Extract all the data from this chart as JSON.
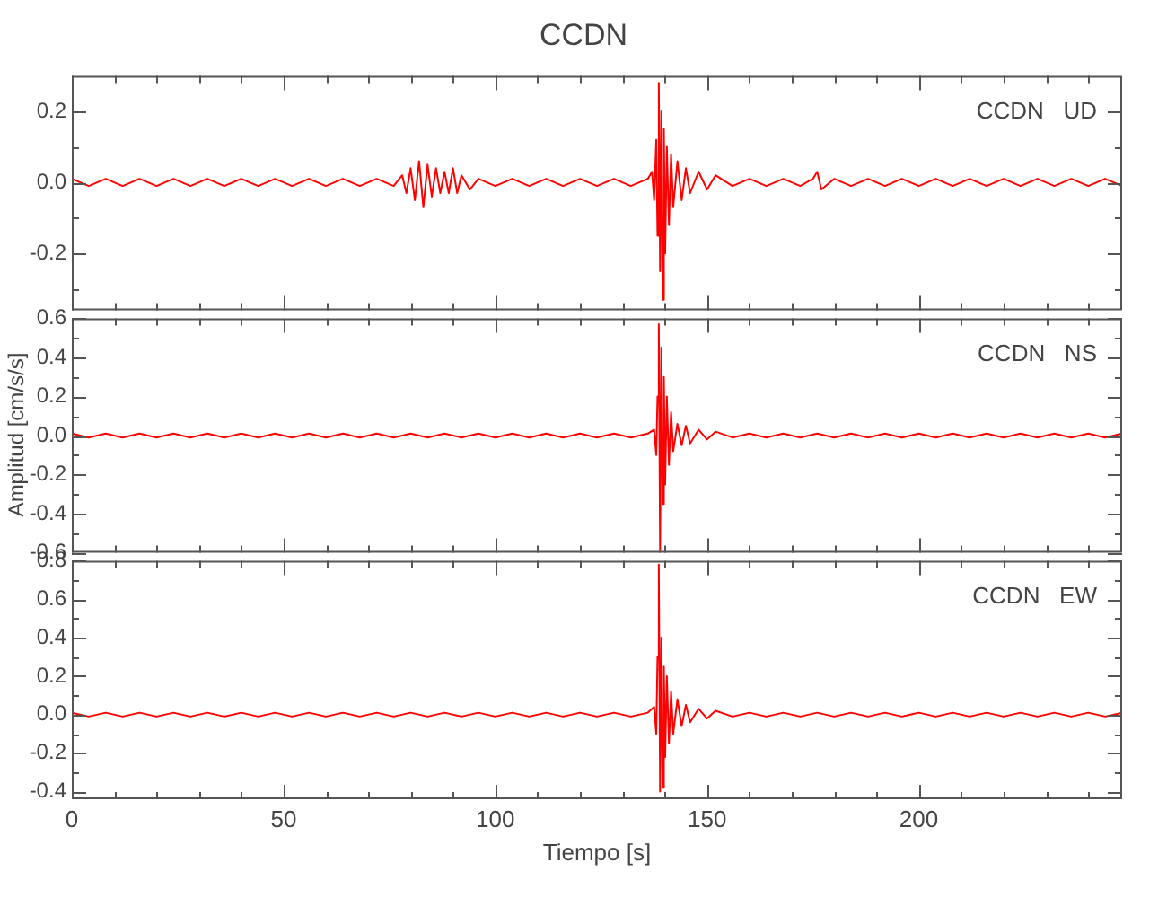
{
  "chart_data": [
    {
      "type": "line",
      "title": "CCDN",
      "annotations": [
        "CCDN   UD"
      ],
      "tick_labels": "y",
      "xlim": [
        0,
        248
      ],
      "xticks": [
        0,
        {
          "value": 10,
          "label": null
        },
        {
          "value": 20,
          "label": null
        },
        {
          "value": 30,
          "label": null
        },
        {
          "value": 40,
          "label": null
        },
        50,
        {
          "value": 60,
          "label": null
        },
        {
          "value": 70,
          "label": null
        },
        {
          "value": 80,
          "label": null
        },
        {
          "value": 90,
          "label": null
        },
        100,
        {
          "value": 110,
          "label": null
        },
        {
          "value": 120,
          "label": null
        },
        {
          "value": 130,
          "label": null
        },
        {
          "value": 140,
          "label": null
        },
        150,
        {
          "value": 160,
          "label": null
        },
        {
          "value": 170,
          "label": null
        },
        {
          "value": 180,
          "label": null
        },
        {
          "value": 190,
          "label": null
        },
        200,
        {
          "value": 210,
          "label": null
        },
        {
          "value": 220,
          "label": null
        },
        {
          "value": 230,
          "label": null
        },
        {
          "value": 240,
          "label": null
        }
      ],
      "ylim": [
        -0.36,
        0.3
      ],
      "yticks": [
        {
          "value": -0.3,
          "label": null
        },
        -0.2,
        {
          "value": -0.1,
          "label": null
        },
        {
          "value": 0,
          "label": "0.0"
        },
        {
          "value": 0.1,
          "label": null
        },
        0.2
      ],
      "series": [
        {
          "color": "#ff0000",
          "x": [
            0,
            4,
            8,
            12,
            16,
            20,
            24,
            28,
            32,
            36,
            40,
            44,
            48,
            52,
            56,
            60,
            64,
            68,
            72,
            76,
            78,
            79,
            80,
            81,
            82,
            83,
            84,
            85,
            86,
            87,
            88,
            89,
            90,
            91,
            92,
            94,
            96,
            100,
            104,
            108,
            112,
            116,
            120,
            124,
            128,
            132,
            136,
            137,
            137.5,
            138,
            138.3,
            138.6,
            138.9,
            139.2,
            139.5,
            139.8,
            140.1,
            140.5,
            141,
            141.5,
            142,
            143,
            144,
            145,
            146,
            148,
            150,
            152,
            156,
            160,
            164,
            168,
            172,
            175,
            176,
            177,
            180,
            184,
            188,
            192,
            196,
            200,
            204,
            208,
            212,
            216,
            220,
            224,
            228,
            232,
            236,
            240,
            244,
            248
          ],
          "values": [
            0.01,
            -0.01,
            0.01,
            -0.01,
            0.01,
            -0.01,
            0.01,
            -0.01,
            0.01,
            -0.01,
            0.01,
            -0.01,
            0.01,
            -0.01,
            0.01,
            -0.01,
            0.01,
            -0.01,
            0.01,
            -0.01,
            0.02,
            -0.03,
            0.04,
            -0.05,
            0.06,
            -0.07,
            0.05,
            -0.04,
            0.04,
            -0.03,
            0.03,
            -0.03,
            0.04,
            -0.03,
            0.02,
            -0.02,
            0.01,
            -0.01,
            0.01,
            -0.01,
            0.01,
            -0.01,
            0.01,
            -0.01,
            0.01,
            -0.01,
            0.01,
            0.03,
            -0.05,
            0.12,
            -0.15,
            0.28,
            -0.25,
            0.2,
            -0.33,
            0.15,
            -0.2,
            0.1,
            -0.12,
            0.08,
            -0.07,
            0.06,
            -0.05,
            0.04,
            -0.03,
            0.03,
            -0.02,
            0.02,
            -0.01,
            0.01,
            -0.01,
            0.01,
            -0.01,
            0.01,
            0.03,
            -0.02,
            0.01,
            -0.01,
            0.01,
            -0.01,
            0.01,
            -0.01,
            0.01,
            -0.01,
            0.01,
            -0.01,
            0.01,
            -0.01,
            0.01,
            -0.01,
            0.01,
            -0.01,
            0.01,
            -0.01
          ]
        }
      ]
    },
    {
      "type": "line",
      "ylabel": "Amplitud [cm/s/s]",
      "annotations": [
        "CCDN   NS"
      ],
      "tick_labels": "y",
      "xlim": [
        0,
        248
      ],
      "xticks": [
        0,
        {
          "value": 10,
          "label": null
        },
        {
          "value": 20,
          "label": null
        },
        {
          "value": 30,
          "label": null
        },
        {
          "value": 40,
          "label": null
        },
        50,
        {
          "value": 60,
          "label": null
        },
        {
          "value": 70,
          "label": null
        },
        {
          "value": 80,
          "label": null
        },
        {
          "value": 90,
          "label": null
        },
        100,
        {
          "value": 110,
          "label": null
        },
        {
          "value": 120,
          "label": null
        },
        {
          "value": 130,
          "label": null
        },
        {
          "value": 140,
          "label": null
        },
        150,
        {
          "value": 160,
          "label": null
        },
        {
          "value": 170,
          "label": null
        },
        {
          "value": 180,
          "label": null
        },
        {
          "value": 190,
          "label": null
        },
        200,
        {
          "value": 210,
          "label": null
        },
        {
          "value": 220,
          "label": null
        },
        {
          "value": 230,
          "label": null
        },
        {
          "value": 240,
          "label": null
        }
      ],
      "ylim": [
        -0.6,
        0.6
      ],
      "yticks": [
        -0.6,
        {
          "value": -0.5,
          "label": null
        },
        -0.4,
        {
          "value": -0.3,
          "label": null
        },
        -0.2,
        {
          "value": -0.1,
          "label": null
        },
        {
          "value": 0,
          "label": "0.0"
        },
        {
          "value": 0.1,
          "label": null
        },
        0.2,
        {
          "value": 0.3,
          "label": null
        },
        0.4,
        {
          "value": 0.5,
          "label": null
        },
        0.6
      ],
      "series": [
        {
          "color": "#ff0000",
          "x": [
            0,
            4,
            8,
            12,
            16,
            20,
            24,
            28,
            32,
            36,
            40,
            44,
            48,
            52,
            56,
            60,
            64,
            68,
            72,
            76,
            80,
            84,
            88,
            92,
            96,
            100,
            104,
            108,
            112,
            116,
            120,
            124,
            128,
            132,
            136,
            137.5,
            138,
            138.3,
            138.6,
            138.9,
            139.2,
            139.5,
            139.8,
            140.1,
            140.5,
            141,
            141.5,
            142,
            143,
            144,
            145,
            146,
            148,
            150,
            152,
            156,
            160,
            164,
            168,
            172,
            176,
            180,
            184,
            188,
            192,
            196,
            200,
            204,
            208,
            212,
            216,
            220,
            224,
            228,
            232,
            236,
            240,
            244,
            248
          ],
          "values": [
            0.01,
            -0.01,
            0.01,
            -0.01,
            0.01,
            -0.01,
            0.01,
            -0.01,
            0.01,
            -0.01,
            0.01,
            -0.01,
            0.01,
            -0.01,
            0.01,
            -0.01,
            0.01,
            -0.01,
            0.01,
            -0.01,
            0.01,
            -0.01,
            0.01,
            -0.01,
            0.01,
            -0.01,
            0.01,
            -0.01,
            0.01,
            -0.01,
            0.01,
            -0.01,
            0.01,
            -0.01,
            0.01,
            0.03,
            -0.1,
            0.2,
            0.57,
            -0.6,
            0.45,
            -0.35,
            0.3,
            -0.25,
            0.2,
            -0.15,
            0.12,
            -0.08,
            0.06,
            -0.05,
            0.05,
            -0.04,
            0.03,
            -0.02,
            0.02,
            -0.01,
            0.01,
            -0.01,
            0.01,
            -0.01,
            0.01,
            -0.01,
            0.01,
            -0.01,
            0.01,
            -0.01,
            0.01,
            -0.01,
            0.01,
            -0.01,
            0.01,
            -0.01,
            0.01,
            -0.01,
            0.01,
            -0.01,
            0.01,
            -0.01,
            0.01
          ]
        }
      ]
    },
    {
      "type": "line",
      "xlabel": "Tiempo [s]",
      "annotations": [
        "CCDN   EW"
      ],
      "xlim": [
        0,
        248
      ],
      "xticks": [
        0,
        {
          "value": 10,
          "label": null
        },
        {
          "value": 20,
          "label": null
        },
        {
          "value": 30,
          "label": null
        },
        {
          "value": 40,
          "label": null
        },
        50,
        {
          "value": 60,
          "label": null
        },
        {
          "value": 70,
          "label": null
        },
        {
          "value": 80,
          "label": null
        },
        {
          "value": 90,
          "label": null
        },
        100,
        {
          "value": 110,
          "label": null
        },
        {
          "value": 120,
          "label": null
        },
        {
          "value": 130,
          "label": null
        },
        {
          "value": 140,
          "label": null
        },
        150,
        {
          "value": 160,
          "label": null
        },
        {
          "value": 170,
          "label": null
        },
        {
          "value": 180,
          "label": null
        },
        {
          "value": 190,
          "label": null
        },
        200,
        {
          "value": 210,
          "label": null
        },
        {
          "value": 220,
          "label": null
        },
        {
          "value": 230,
          "label": null
        },
        {
          "value": 240,
          "label": null
        }
      ],
      "ylim": [
        -0.44,
        0.8
      ],
      "yticks": [
        -0.4,
        {
          "value": -0.3,
          "label": null
        },
        -0.2,
        {
          "value": -0.1,
          "label": null
        },
        {
          "value": 0,
          "label": "0.0"
        },
        {
          "value": 0.1,
          "label": null
        },
        0.2,
        {
          "value": 0.3,
          "label": null
        },
        0.4,
        {
          "value": 0.5,
          "label": null
        },
        0.6,
        {
          "value": 0.7,
          "label": null
        },
        0.8
      ],
      "series": [
        {
          "color": "#ff0000",
          "x": [
            0,
            4,
            8,
            12,
            16,
            20,
            24,
            28,
            32,
            36,
            40,
            44,
            48,
            52,
            56,
            60,
            64,
            68,
            72,
            76,
            80,
            84,
            88,
            92,
            96,
            100,
            104,
            108,
            112,
            116,
            120,
            124,
            128,
            132,
            136,
            137.5,
            138,
            138.3,
            138.6,
            138.9,
            139.2,
            139.5,
            139.8,
            140.1,
            140.5,
            141,
            141.5,
            142,
            143,
            144,
            145,
            146,
            148,
            150,
            152,
            156,
            160,
            164,
            168,
            172,
            176,
            180,
            184,
            188,
            192,
            196,
            200,
            204,
            208,
            212,
            216,
            220,
            224,
            228,
            232,
            236,
            240,
            244,
            248
          ],
          "values": [
            0.01,
            -0.01,
            0.01,
            -0.01,
            0.01,
            -0.01,
            0.01,
            -0.01,
            0.01,
            -0.01,
            0.01,
            -0.01,
            0.01,
            -0.01,
            0.01,
            -0.01,
            0.01,
            -0.01,
            0.01,
            -0.01,
            0.01,
            -0.01,
            0.01,
            -0.01,
            0.01,
            -0.01,
            0.01,
            -0.01,
            0.01,
            -0.01,
            0.01,
            -0.01,
            0.01,
            -0.01,
            0.01,
            0.04,
            -0.1,
            0.3,
            0.78,
            -0.4,
            0.4,
            -0.38,
            0.25,
            -0.22,
            0.2,
            -0.15,
            0.12,
            -0.1,
            0.08,
            -0.06,
            0.05,
            -0.04,
            0.03,
            -0.02,
            0.02,
            -0.01,
            0.01,
            -0.01,
            0.01,
            -0.01,
            0.01,
            -0.01,
            0.01,
            -0.01,
            0.01,
            -0.01,
            0.01,
            -0.01,
            0.01,
            -0.01,
            0.01,
            -0.01,
            0.01,
            -0.01,
            0.01,
            -0.01,
            0.01,
            -0.01,
            0.01
          ]
        }
      ]
    }
  ]
}
